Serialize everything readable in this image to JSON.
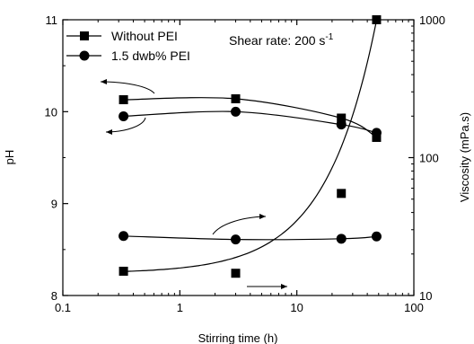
{
  "chart_data": {
    "type": "scatter",
    "xlabel": "Stirring time (h)",
    "ylabel_left": "pH",
    "ylabel_right": "Viscosity (mPa.s)",
    "x_scale": "log",
    "xlim": [
      0.1,
      100
    ],
    "ylim_left": [
      8,
      11
    ],
    "ylim_right": [
      10,
      1000
    ],
    "y_right_scale": "log",
    "x_tick_labels": [
      "0.1",
      "1",
      "10",
      "100"
    ],
    "y_left_tick_labels": [
      "8",
      "9",
      "10",
      "11"
    ],
    "y_right_tick_labels": [
      "10",
      "100",
      "1000"
    ],
    "annotation": "Shear rate: 200 s",
    "annotation_sup": "-1",
    "legend_position": "top-left",
    "series": [
      {
        "name": "Without PEI",
        "marker": "square",
        "axis": "left",
        "quantity": "pH",
        "x": [
          0.33,
          3,
          24,
          48
        ],
        "y": [
          10.13,
          10.14,
          9.93,
          9.72
        ]
      },
      {
        "name": "1.5 dwb% PEI",
        "marker": "circle",
        "axis": "left",
        "quantity": "pH",
        "x": [
          0.33,
          3,
          24,
          48
        ],
        "y": [
          9.95,
          10.0,
          9.86,
          9.77
        ]
      },
      {
        "name": "Without PEI",
        "marker": "square",
        "axis": "right",
        "quantity": "Viscosity",
        "x": [
          0.33,
          3,
          24,
          48
        ],
        "y": [
          15,
          14.5,
          55,
          1000
        ]
      },
      {
        "name": "1.5 dwb% PEI",
        "marker": "circle",
        "axis": "right",
        "quantity": "Viscosity",
        "x": [
          0.33,
          3,
          24,
          48
        ],
        "y": [
          27,
          25.5,
          25.8,
          26.8
        ]
      }
    ]
  }
}
